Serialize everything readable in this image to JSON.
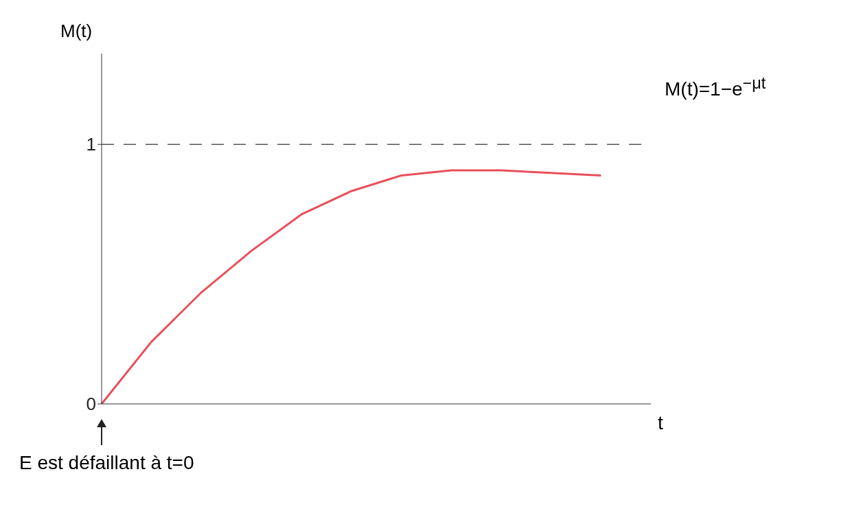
{
  "chart_data": {
    "type": "line",
    "ylabel": "M(t)",
    "xlabel": "t",
    "categories": [
      null,
      null,
      null,
      null,
      null,
      null,
      null,
      null,
      null,
      null,
      null,
      null
    ],
    "series": [
      {
        "color": "#e8505b",
        "values": [
          0,
          0.24,
          0.43,
          0.59,
          0.73,
          0.82,
          0.88,
          0.9,
          0.9,
          0.89,
          0.88,
          null
        ]
      }
    ],
    "ylim": [
      0,
      1.35
    ],
    "yticks": [
      0,
      1
    ],
    "ref_lines": [
      {
        "axis": "y",
        "value": 1,
        "line_style": "dashed",
        "color": "#555555"
      }
    ],
    "annotations": [
      "M(t)=1−e$^{−μt}$",
      "E est défaillant à t=0"
    ]
  }
}
